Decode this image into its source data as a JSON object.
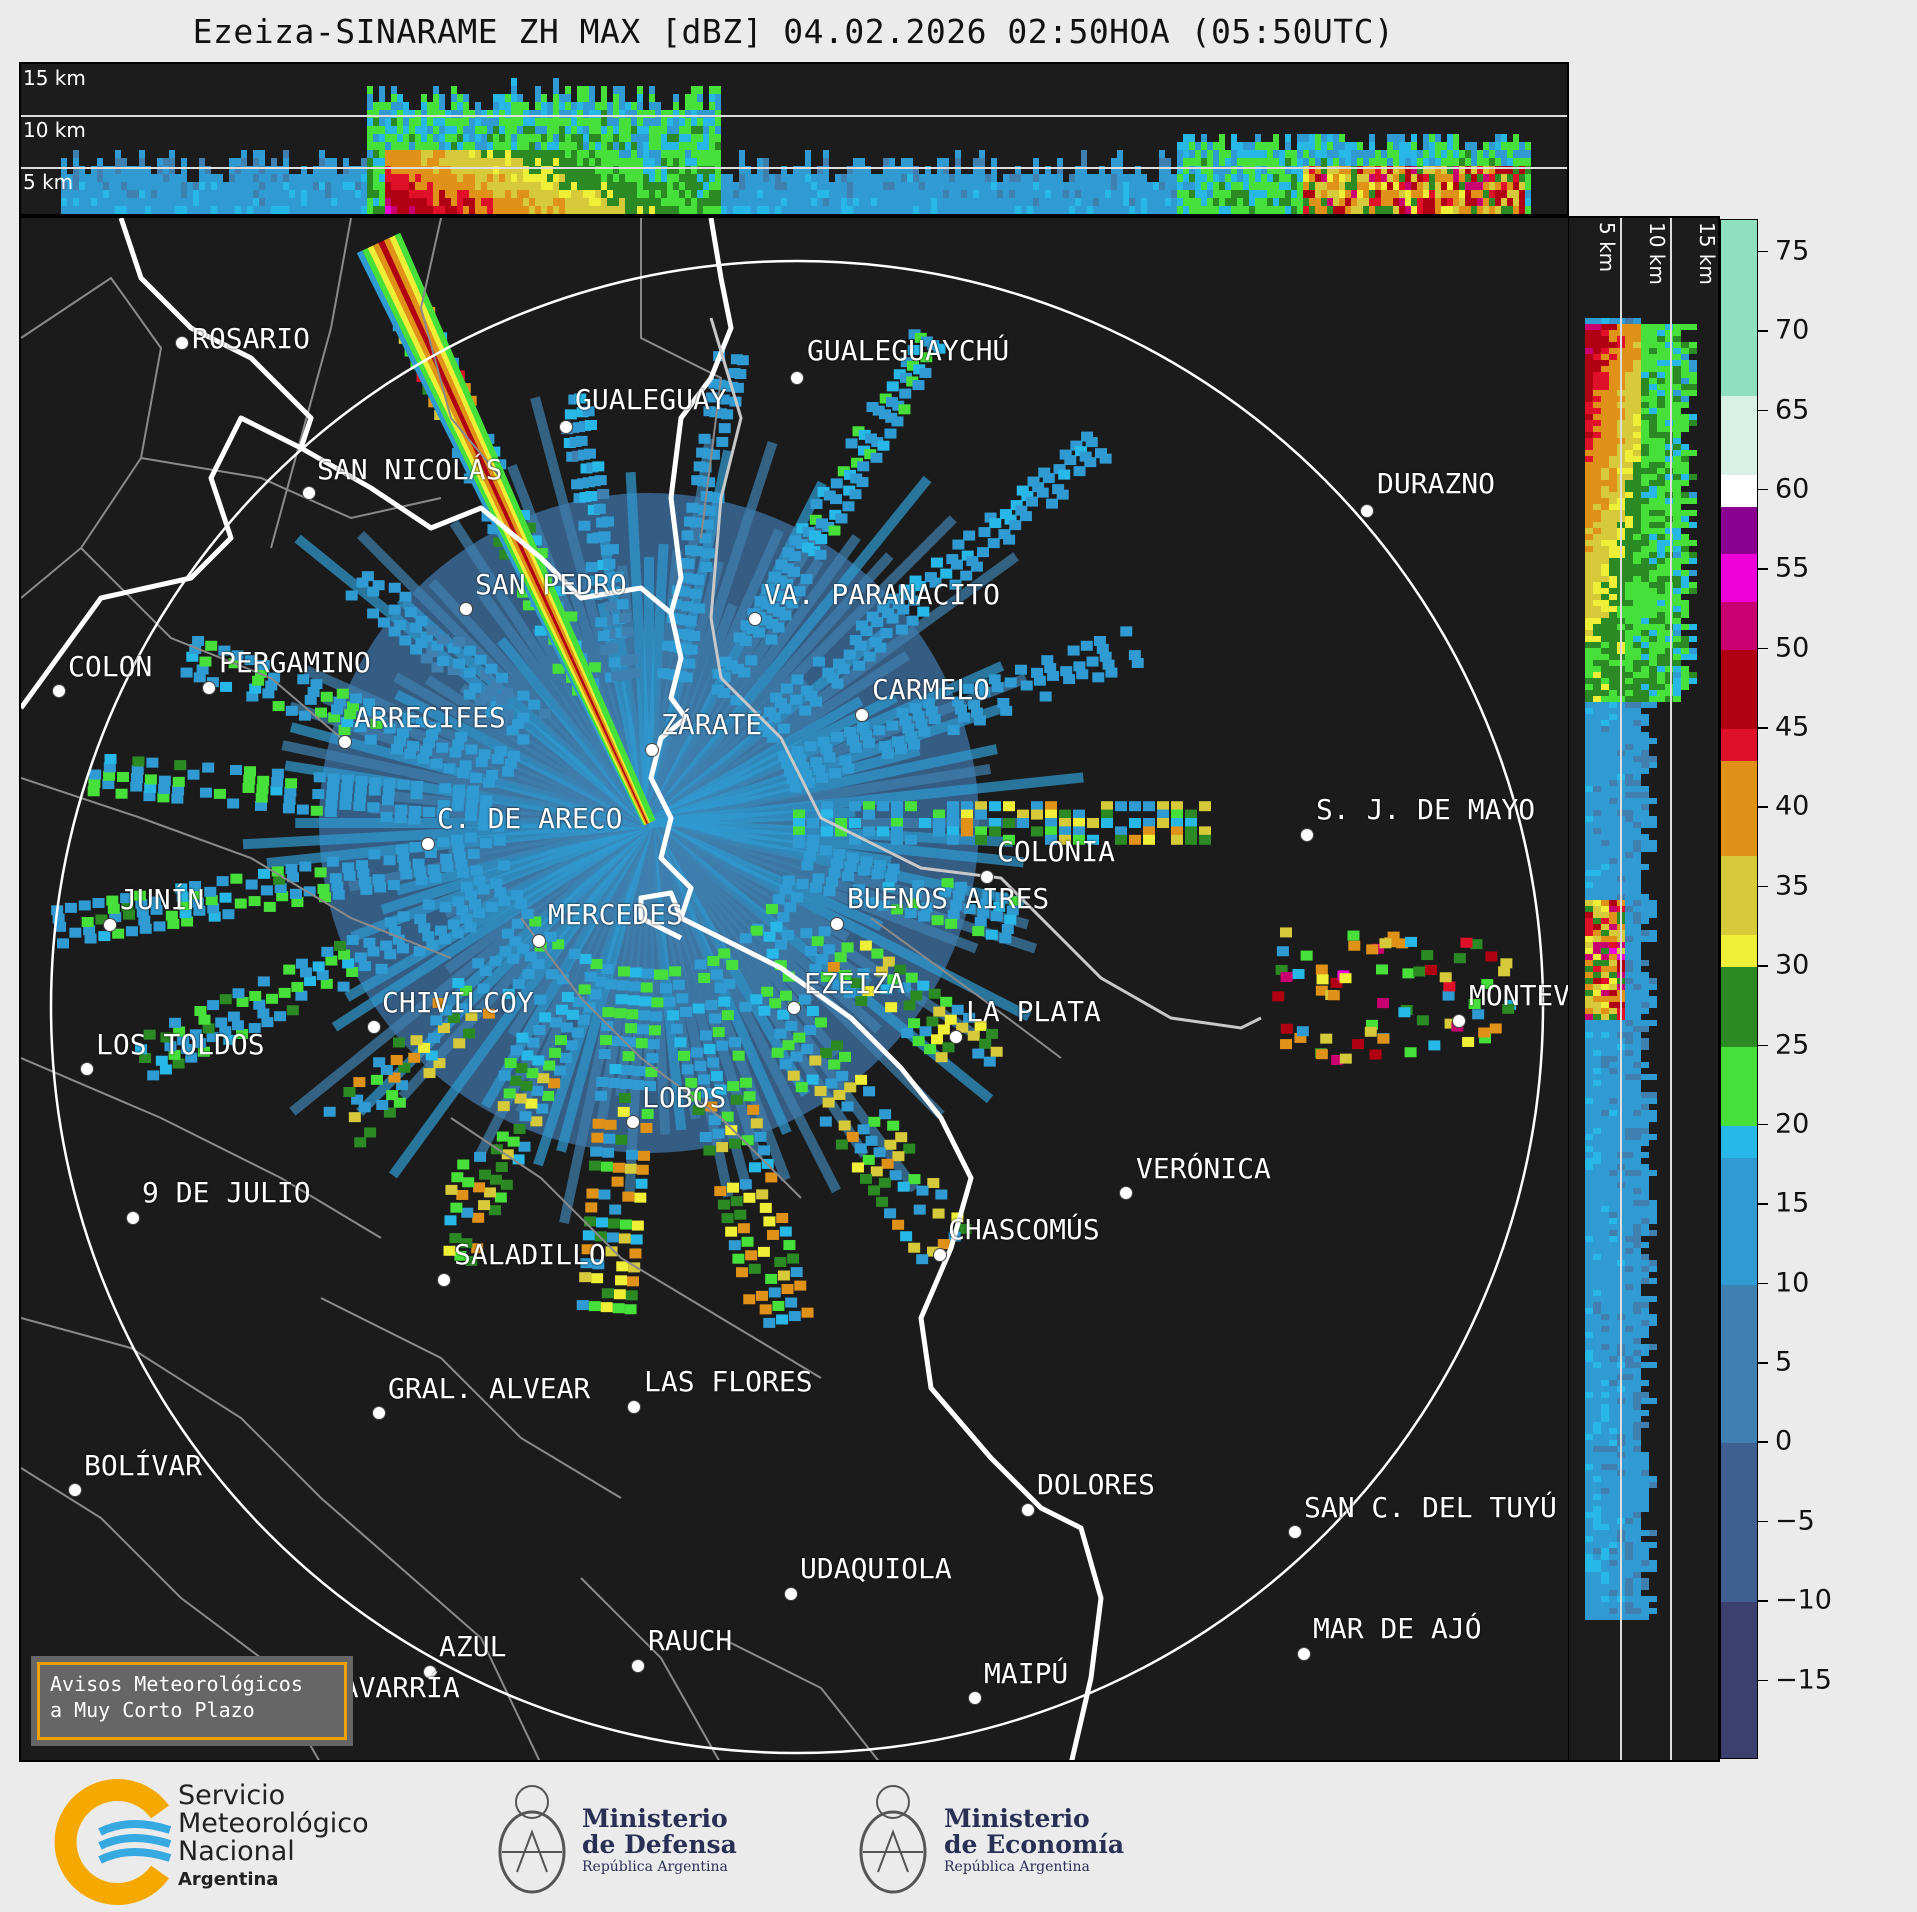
{
  "title": "Ezeiza-SINARAME ZH MAX [dBZ] 04.02.2026 02:50HOA (05:50UTC)",
  "height_labels": [
    "15 km",
    "10 km",
    "5 km"
  ],
  "cities": [
    {
      "name": "ROSARIO"
    },
    {
      "name": "GUALEGUAYCHÚ"
    },
    {
      "name": "GUALEGUAY"
    },
    {
      "name": "SAN NICOLÁS"
    },
    {
      "name": "DURAZNO"
    },
    {
      "name": "SAN PEDRO"
    },
    {
      "name": "VA. PARANACITO"
    },
    {
      "name": "COLON"
    },
    {
      "name": "PERGAMINO"
    },
    {
      "name": "CARMELO"
    },
    {
      "name": "ARRECIFES"
    },
    {
      "name": "ZÁRATE"
    },
    {
      "name": "S. J. DE MAYO"
    },
    {
      "name": "C. DE ARECO"
    },
    {
      "name": "COLONIA"
    },
    {
      "name": "JUNÍN"
    },
    {
      "name": "BUENOS AIRES"
    },
    {
      "name": "MERCEDES"
    },
    {
      "name": "EZEIZA"
    },
    {
      "name": "MONTEV"
    },
    {
      "name": "CHIVILCOY"
    },
    {
      "name": "LA PLATA"
    },
    {
      "name": "LOS TOLDOS"
    },
    {
      "name": "LOBOS"
    },
    {
      "name": "VERÓNICA"
    },
    {
      "name": "9 DE JULIO"
    },
    {
      "name": "CHASCOMÚS"
    },
    {
      "name": "SALADILLO"
    },
    {
      "name": "GRAL. ALVEAR"
    },
    {
      "name": "LAS FLORES"
    },
    {
      "name": "BOLÍVAR"
    },
    {
      "name": "DOLORES"
    },
    {
      "name": "SAN C. DEL TUYÚ"
    },
    {
      "name": "UDAQUIOLA"
    },
    {
      "name": "MAR DE AJÓ"
    },
    {
      "name": "AZUL"
    },
    {
      "name": "RAUCH"
    },
    {
      "name": "OLAVARRÍA"
    },
    {
      "name": "MAIPÚ"
    }
  ],
  "avisos": {
    "line1": "Avisos Meteorológicos",
    "line2": "a Muy Corto Plazo"
  },
  "colorbar": {
    "unit": "dBZ",
    "range": [
      -20,
      77
    ],
    "ticks": [
      75,
      70,
      65,
      60,
      55,
      50,
      45,
      40,
      35,
      30,
      25,
      20,
      15,
      10,
      5,
      0,
      -5,
      -10,
      -15
    ],
    "tick_labels": [
      "75",
      "70",
      "65",
      "60",
      "55",
      "50",
      "45",
      "40",
      "35",
      "30",
      "25",
      "20",
      "15",
      "10",
      "5",
      "0",
      "−5",
      "−10",
      "−15"
    ],
    "bands": [
      {
        "from": -20,
        "to": -10,
        "color": "#3d3f6e"
      },
      {
        "from": -10,
        "to": 0,
        "color": "#3e5f8f"
      },
      {
        "from": 0,
        "to": 10,
        "color": "#3f80b0"
      },
      {
        "from": 10,
        "to": 18,
        "color": "#2f9bd2"
      },
      {
        "from": 18,
        "to": 20,
        "color": "#28b8e8"
      },
      {
        "from": 20,
        "to": 25,
        "color": "#47e03a"
      },
      {
        "from": 25,
        "to": 30,
        "color": "#2b8a23"
      },
      {
        "from": 30,
        "to": 32,
        "color": "#f0ef38"
      },
      {
        "from": 32,
        "to": 37,
        "color": "#d6c93a"
      },
      {
        "from": 37,
        "to": 43,
        "color": "#e09218"
      },
      {
        "from": 43,
        "to": 45,
        "color": "#e01028"
      },
      {
        "from": 45,
        "to": 50,
        "color": "#b00012"
      },
      {
        "from": 50,
        "to": 53,
        "color": "#c80070"
      },
      {
        "from": 53,
        "to": 56,
        "color": "#f000d8"
      },
      {
        "from": 56,
        "to": 59,
        "color": "#8a0090"
      },
      {
        "from": 59,
        "to": 61,
        "color": "#ffffff"
      },
      {
        "from": 61,
        "to": 66,
        "color": "#d8f0e6"
      },
      {
        "from": 66,
        "to": 77,
        "color": "#8fe0c0"
      }
    ]
  },
  "logos": {
    "smn": {
      "line1": "Servicio",
      "line2": "Meteorológico",
      "line3": "Nacional",
      "line4": "Argentina"
    },
    "defensa": {
      "line1": "Ministerio",
      "line2": "de Defensa",
      "line3": "República Argentina"
    },
    "economia": {
      "line1": "Ministerio",
      "line2": "de Economía",
      "line3": "República Argentina"
    }
  },
  "colors": {
    "range_ring": "#ffffff",
    "coast": "#ffffff",
    "borders": "#8a8a8a",
    "background": "#1b1b1b"
  }
}
